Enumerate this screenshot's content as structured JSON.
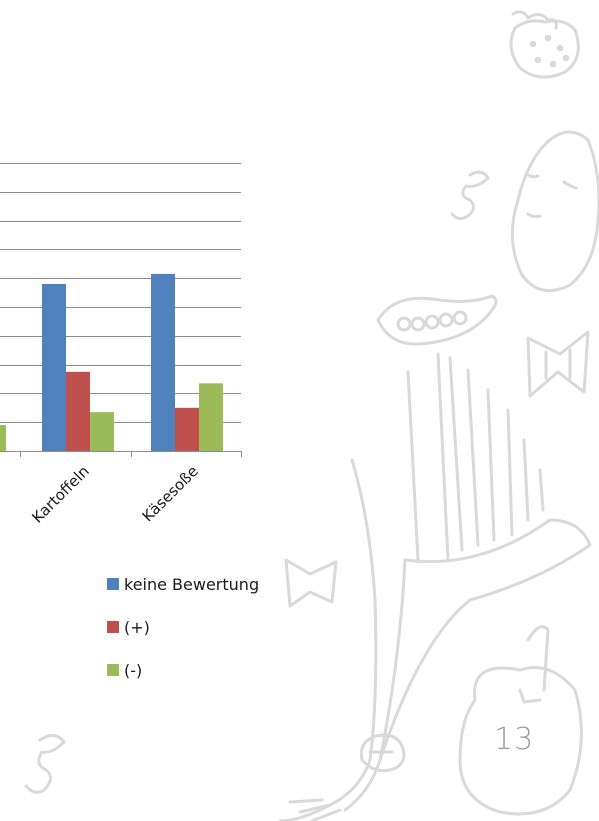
{
  "chart_data": {
    "type": "bar",
    "categories": [
      "Kartoffeln",
      "Käsesoße"
    ],
    "series": [
      {
        "name": "keine Bewertung",
        "color": "#4f81bd",
        "values": [
          58,
          61.5
        ]
      },
      {
        "name": "(+)",
        "color": "#c0504d",
        "values": [
          27.5,
          15
        ]
      },
      {
        "name": "(-)",
        "color": "#9bbb59",
        "values": [
          13.5,
          23.5
        ]
      }
    ],
    "partial_series_values_left_of_crop": {
      "(-)": 9
    },
    "ylim": [
      0,
      100
    ],
    "grid": true,
    "legend_position": "bottom"
  },
  "legend": {
    "items": [
      {
        "label": "keine Bewertung",
        "color": "#4f81bd"
      },
      {
        "label": "(+)",
        "color": "#c0504d"
      },
      {
        "label": "(-)",
        "color": "#9bbb59"
      }
    ]
  },
  "page_number": "13",
  "decor": {
    "icons": [
      "strawberry-icon",
      "potato-icon",
      "pasta-spiral-icon",
      "pea-pod-icon",
      "bowtie-pasta-icon",
      "leek-icon",
      "bell-pepper-icon",
      "mushroom-icon"
    ]
  }
}
